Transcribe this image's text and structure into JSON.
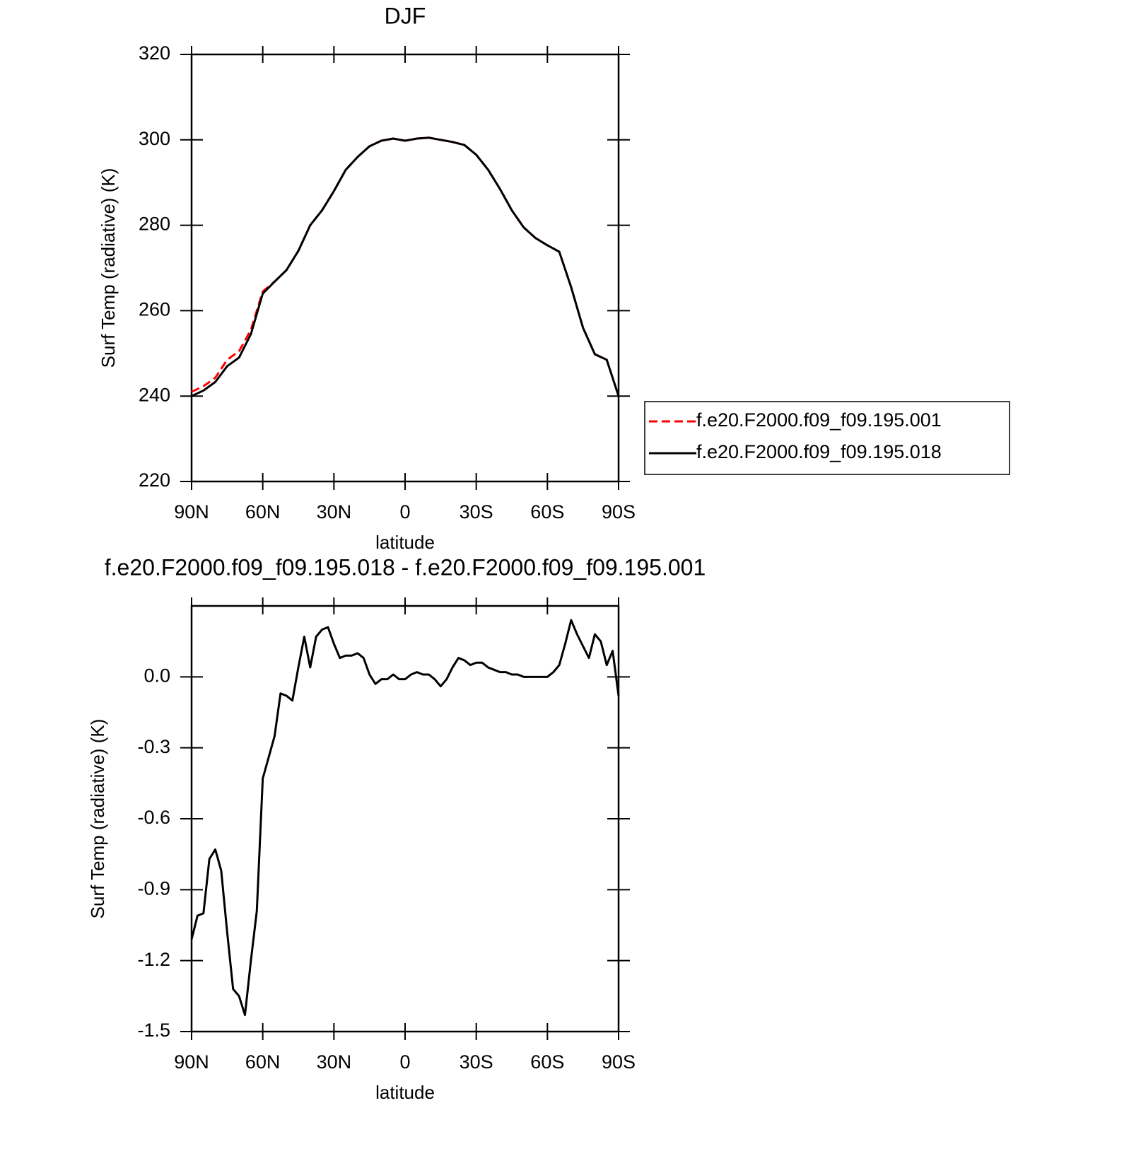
{
  "chart_data": [
    {
      "type": "line",
      "title": "DJF",
      "xlabel": "latitude",
      "ylabel": "Surf Temp (radiative) (K)",
      "x": [
        90,
        85,
        80,
        75,
        70,
        65,
        60,
        55,
        50,
        45,
        40,
        35,
        30,
        25,
        20,
        15,
        10,
        5,
        0,
        -5,
        -10,
        -15,
        -20,
        -25,
        -30,
        -35,
        -40,
        -45,
        -50,
        -55,
        -60,
        -65,
        -70,
        -75,
        -80,
        -85,
        -90
      ],
      "xlim": [
        90,
        -90
      ],
      "xticks": [
        {
          "value": 90,
          "label": "90N"
        },
        {
          "value": 60,
          "label": "60N"
        },
        {
          "value": 30,
          "label": "30N"
        },
        0,
        {
          "value": -30,
          "label": "30S"
        },
        {
          "value": -60,
          "label": "60S"
        },
        {
          "value": -90,
          "label": "90S"
        }
      ],
      "ylim": [
        220,
        320
      ],
      "yticks": [
        220,
        240,
        260,
        280,
        300,
        320
      ],
      "legend": "right",
      "series": [
        {
          "name": "f.e20.F2000.f09_f09.195.001",
          "color": "#ff0000",
          "dashed": true,
          "values": [
            241.0,
            242.3,
            244.3,
            248.5,
            250.5,
            255.5,
            264.5,
            266.8,
            269.5,
            274.0,
            280.0,
            283.5,
            288.0,
            293.0,
            296.0,
            298.5,
            299.8,
            300.3,
            299.8,
            300.3,
            300.5,
            300.0,
            299.5,
            298.8,
            296.5,
            293.0,
            288.5,
            283.5,
            279.5,
            277.0,
            275.3,
            273.8,
            265.5,
            256.0,
            249.8,
            248.5,
            240.0
          ]
        },
        {
          "name": "f.e20.F2000.f09_f09.195.018",
          "color": "#000000",
          "dashed": false,
          "values": [
            240.0,
            241.3,
            243.3,
            247.0,
            249.0,
            254.5,
            264.0,
            266.8,
            269.5,
            274.0,
            280.0,
            283.5,
            288.0,
            293.0,
            296.0,
            298.5,
            299.8,
            300.3,
            299.8,
            300.3,
            300.5,
            300.0,
            299.5,
            298.8,
            296.5,
            293.0,
            288.5,
            283.5,
            279.5,
            277.0,
            275.3,
            273.8,
            265.5,
            256.0,
            249.8,
            248.5,
            240.0
          ]
        }
      ]
    },
    {
      "type": "line",
      "title": "f.e20.F2000.f09_f09.195.018 - f.e20.F2000.f09_f09.195.001",
      "xlabel": "latitude",
      "ylabel": "Surf Temp (radiative) (K)",
      "x": [
        90,
        87.5,
        85,
        82.5,
        80,
        77.5,
        75,
        72.5,
        70,
        67.5,
        65,
        62.5,
        60,
        57.5,
        55,
        52.5,
        50,
        47.5,
        45,
        42.5,
        40,
        37.5,
        35,
        32.5,
        30,
        27.5,
        25,
        22.5,
        20,
        17.5,
        15,
        12.5,
        10,
        7.5,
        5,
        2.5,
        0,
        -2.5,
        -5,
        -7.5,
        -10,
        -12.5,
        -15,
        -17.5,
        -20,
        -22.5,
        -25,
        -27.5,
        -30,
        -32.5,
        -35,
        -37.5,
        -40,
        -42.5,
        -45,
        -47.5,
        -50,
        -52.5,
        -55,
        -57.5,
        -60,
        -62.5,
        -65,
        -67.5,
        -70,
        -72.5,
        -75,
        -77.5,
        -80,
        -82.5,
        -85,
        -87.5,
        -90
      ],
      "xlim": [
        90,
        -90
      ],
      "xticks": [
        {
          "value": 90,
          "label": "90N"
        },
        {
          "value": 60,
          "label": "60N"
        },
        {
          "value": 30,
          "label": "30N"
        },
        0,
        {
          "value": -30,
          "label": "30S"
        },
        {
          "value": -60,
          "label": "60S"
        },
        {
          "value": -90,
          "label": "90S"
        }
      ],
      "ylim": [
        -1.5,
        0.3
      ],
      "yticks": [
        -1.5,
        -1.2,
        -0.9,
        -0.6,
        -0.3,
        {
          "value": 0,
          "label": "0.0"
        }
      ],
      "color": "#000000",
      "values": [
        -1.11,
        -1.01,
        -1.0,
        -0.77,
        -0.73,
        -0.82,
        -1.08,
        -1.32,
        -1.35,
        -1.43,
        -1.2,
        -0.99,
        -0.43,
        -0.34,
        -0.25,
        -0.07,
        -0.08,
        -0.1,
        0.04,
        0.17,
        0.04,
        0.17,
        0.2,
        0.21,
        0.14,
        0.08,
        0.09,
        0.09,
        0.1,
        0.08,
        0.01,
        -0.03,
        -0.01,
        -0.01,
        0.01,
        -0.01,
        -0.01,
        0.01,
        0.02,
        0.01,
        0.01,
        -0.01,
        -0.04,
        -0.01,
        0.04,
        0.08,
        0.07,
        0.05,
        0.06,
        0.06,
        0.04,
        0.03,
        0.02,
        0.02,
        0.01,
        0.01,
        0.0,
        0.0,
        0.0,
        0.0,
        0.0,
        0.02,
        0.05,
        0.14,
        0.24,
        0.18,
        0.13,
        0.08,
        0.18,
        0.15,
        0.05,
        0.11,
        -0.08
      ]
    }
  ]
}
